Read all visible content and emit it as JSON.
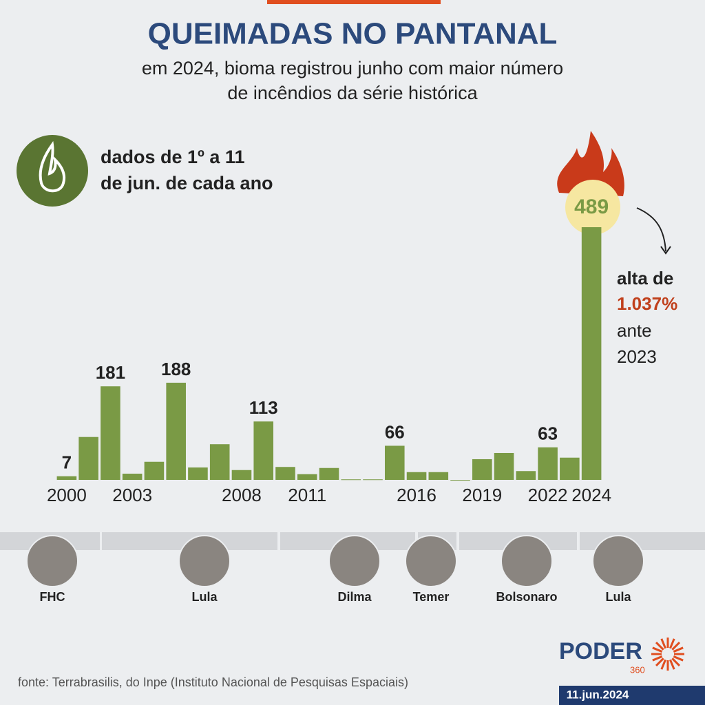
{
  "chart_data": {
    "type": "bar",
    "title": "QUEIMADAS NO PANTANAL",
    "subtitle": [
      "em 2024, bioma registrou junho com maior número",
      "de incêndios da série histórica"
    ],
    "note": [
      "dados de 1º a 11",
      "de jun. de cada ano"
    ],
    "annotation": {
      "line1": "alta de",
      "highlight": "1.037%",
      "line3": "ante",
      "line4": "2023"
    },
    "categories": [
      "2000",
      null,
      null,
      "2003",
      null,
      null,
      null,
      null,
      "2008",
      null,
      null,
      "2011",
      null,
      null,
      null,
      null,
      "2016",
      null,
      null,
      "2019",
      null,
      null,
      "2022",
      null,
      "2024"
    ],
    "values": [
      7,
      83,
      181,
      12,
      35,
      188,
      24,
      69,
      19,
      113,
      25,
      11,
      23,
      1,
      1,
      66,
      15,
      15,
      0,
      40,
      52,
      17,
      63,
      43,
      489
    ],
    "value_labels": [
      "7",
      null,
      "181",
      null,
      null,
      "188",
      null,
      null,
      null,
      "113",
      null,
      null,
      null,
      null,
      null,
      "66",
      null,
      null,
      null,
      null,
      null,
      null,
      "63",
      null,
      "489"
    ],
    "color": "#7a9a45",
    "ylim": [
      0,
      489
    ]
  },
  "presidents": [
    "FHC",
    "Lula",
    "Dilma",
    "Temer",
    "Bolsonaro",
    "Lula"
  ],
  "source": "fonte: Terrabrasilis, do Inpe (Instituto Nacional de Pesquisas Espaciais)",
  "brand": {
    "name": "PODER",
    "number": "360"
  },
  "date": "11.jun.2024"
}
